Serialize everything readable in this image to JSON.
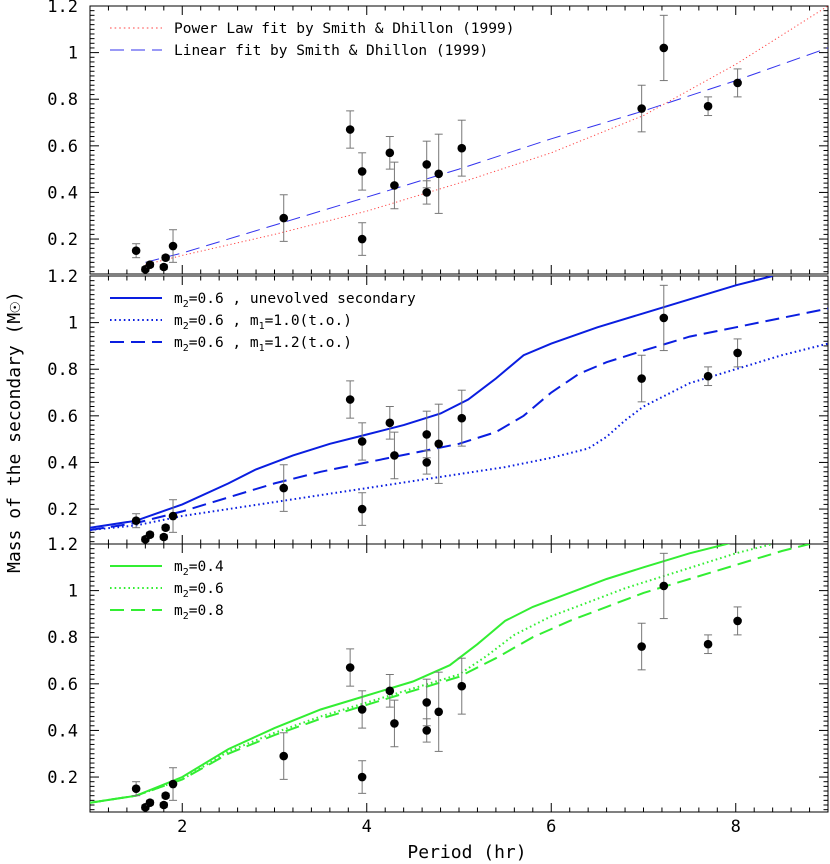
{
  "chart_data": {
    "type": "scatter",
    "shared_axes": {
      "xlabel": "Period (hr)",
      "ylabel": "Mass of the secondary (M☉)",
      "xlim": [
        1.0,
        9.0
      ],
      "ylim": [
        0.05,
        1.2
      ],
      "xticks": [
        2,
        4,
        6,
        8
      ],
      "yticks": [
        0.2,
        0.4,
        0.6,
        0.8,
        1,
        1.2
      ]
    },
    "observations": [
      {
        "x": 1.5,
        "y": 0.15,
        "err": 0.03
      },
      {
        "x": 1.6,
        "y": 0.07,
        "err": 0.01
      },
      {
        "x": 1.65,
        "y": 0.09,
        "err": 0.01
      },
      {
        "x": 1.8,
        "y": 0.08,
        "err": 0.01
      },
      {
        "x": 1.82,
        "y": 0.12,
        "err": 0.01
      },
      {
        "x": 1.9,
        "y": 0.17,
        "err": 0.07
      },
      {
        "x": 3.1,
        "y": 0.29,
        "err": 0.1
      },
      {
        "x": 3.82,
        "y": 0.67,
        "err": 0.08
      },
      {
        "x": 3.95,
        "y": 0.49,
        "err": 0.08
      },
      {
        "x": 3.95,
        "y": 0.2,
        "err": 0.07
      },
      {
        "x": 4.25,
        "y": 0.57,
        "err": 0.07
      },
      {
        "x": 4.3,
        "y": 0.43,
        "err": 0.1
      },
      {
        "x": 4.65,
        "y": 0.52,
        "err": 0.1
      },
      {
        "x": 4.65,
        "y": 0.4,
        "err": 0.05
      },
      {
        "x": 4.78,
        "y": 0.48,
        "err": 0.17
      },
      {
        "x": 5.03,
        "y": 0.59,
        "err": 0.12
      },
      {
        "x": 6.98,
        "y": 0.76,
        "err": 0.1
      },
      {
        "x": 7.22,
        "y": 1.02,
        "err": 0.14
      },
      {
        "x": 7.7,
        "y": 0.77,
        "err": 0.04
      },
      {
        "x": 8.02,
        "y": 0.87,
        "err": 0.06
      }
    ],
    "panels": [
      {
        "series": [
          {
            "name": "Power Law fit by Smith & Dhillon (1999)",
            "style": "dotted",
            "color": "#ff4444",
            "x": [
              1.6,
              2.0,
              3.0,
              4.0,
              5.0,
              6.0,
              7.0,
              8.0,
              9.0
            ],
            "y": [
              0.09,
              0.13,
              0.22,
              0.32,
              0.44,
              0.57,
              0.73,
              0.95,
              1.2
            ]
          },
          {
            "name": "Linear fit by Smith & Dhillon (1999)",
            "style": "dashed",
            "color": "#3333ee",
            "x": [
              1.6,
              2.0,
              3.0,
              4.0,
              5.0,
              6.0,
              7.0,
              8.0,
              9.0
            ],
            "y": [
              0.1,
              0.14,
              0.26,
              0.38,
              0.5,
              0.63,
              0.75,
              0.88,
              1.02
            ]
          }
        ],
        "legend": [
          {
            "parts": [
              "Power Law fit by Smith & Dhillon (1999)"
            ],
            "style": "dotted",
            "color": "#ff4444"
          },
          {
            "parts": [
              "Linear fit by Smith & Dhillon (1999)"
            ],
            "style": "dashed",
            "color": "#3333ee"
          }
        ]
      },
      {
        "series": [
          {
            "name": "m2=0.6 , unevolved secondary",
            "style": "solid",
            "color": "#0a1ee0",
            "x": [
              1.0,
              1.5,
              2.0,
              2.5,
              2.8,
              3.2,
              3.6,
              4.0,
              4.4,
              4.8,
              5.1,
              5.4,
              5.7,
              6.0,
              6.5,
              7.0,
              7.5,
              8.0,
              8.4
            ],
            "y": [
              0.12,
              0.15,
              0.22,
              0.31,
              0.37,
              0.43,
              0.48,
              0.52,
              0.56,
              0.61,
              0.67,
              0.76,
              0.86,
              0.91,
              0.98,
              1.04,
              1.1,
              1.16,
              1.2
            ]
          },
          {
            "name": "m2=0.6 , m1=1.0(t.o.)",
            "style": "dotted",
            "color": "#0a1ee0",
            "x": [
              1.0,
              1.5,
              2.0,
              3.0,
              4.0,
              5.0,
              5.5,
              6.0,
              6.4,
              6.6,
              6.8,
              7.0,
              7.5,
              8.0,
              8.5,
              9.0
            ],
            "y": [
              0.11,
              0.13,
              0.17,
              0.23,
              0.29,
              0.35,
              0.38,
              0.42,
              0.46,
              0.51,
              0.58,
              0.64,
              0.74,
              0.8,
              0.86,
              0.91
            ]
          },
          {
            "name": "m2=0.6 , m1=1.2(t.o.)",
            "style": "dashed",
            "color": "#0a1ee0",
            "x": [
              1.0,
              1.5,
              2.0,
              2.5,
              3.0,
              3.5,
              4.0,
              4.5,
              5.0,
              5.4,
              5.7,
              6.0,
              6.3,
              6.6,
              7.0,
              7.5,
              8.0,
              8.5,
              9.0
            ],
            "y": [
              0.11,
              0.14,
              0.19,
              0.25,
              0.31,
              0.36,
              0.4,
              0.44,
              0.48,
              0.53,
              0.6,
              0.7,
              0.78,
              0.83,
              0.88,
              0.94,
              0.98,
              1.02,
              1.06
            ]
          }
        ],
        "legend": [
          {
            "parts": [
              "m",
              "2",
              "=0.6 , unevolved secondary"
            ],
            "style": "solid",
            "color": "#0a1ee0"
          },
          {
            "parts": [
              "m",
              "2",
              "=0.6 , m",
              "1",
              "=1.0(t.o.)"
            ],
            "style": "dotted",
            "color": "#0a1ee0"
          },
          {
            "parts": [
              "m",
              "2",
              "=0.6 , m",
              "1",
              "=1.2(t.o.)"
            ],
            "style": "dashed",
            "color": "#0a1ee0"
          }
        ]
      },
      {
        "series": [
          {
            "name": "m2=0.4",
            "style": "solid",
            "color": "#33ee33",
            "x": [
              1.0,
              1.5,
              2.0,
              2.5,
              3.0,
              3.5,
              4.0,
              4.5,
              4.9,
              5.2,
              5.5,
              5.8,
              6.2,
              6.6,
              7.0,
              7.5,
              8.0
            ],
            "y": [
              0.09,
              0.12,
              0.2,
              0.32,
              0.41,
              0.49,
              0.55,
              0.61,
              0.68,
              0.77,
              0.87,
              0.93,
              0.99,
              1.05,
              1.1,
              1.16,
              1.21
            ]
          },
          {
            "name": "m2=0.6",
            "style": "dotted",
            "color": "#33ee33",
            "x": [
              1.0,
              1.5,
              2.0,
              2.5,
              3.0,
              3.5,
              4.0,
              4.5,
              5.0,
              5.3,
              5.6,
              6.0,
              6.4,
              6.8,
              7.2,
              7.6,
              8.0,
              8.4
            ],
            "y": [
              0.09,
              0.12,
              0.19,
              0.31,
              0.39,
              0.46,
              0.52,
              0.58,
              0.64,
              0.72,
              0.81,
              0.89,
              0.95,
              1.01,
              1.06,
              1.11,
              1.16,
              1.2
            ]
          },
          {
            "name": "m2=0.8",
            "style": "dashed",
            "color": "#33ee33",
            "x": [
              1.0,
              1.5,
              2.0,
              2.5,
              3.0,
              3.5,
              4.0,
              4.5,
              5.0,
              5.4,
              5.8,
              6.2,
              6.6,
              7.0,
              7.5,
              8.0,
              8.5,
              8.8
            ],
            "y": [
              0.09,
              0.12,
              0.19,
              0.3,
              0.38,
              0.45,
              0.51,
              0.57,
              0.63,
              0.71,
              0.8,
              0.87,
              0.93,
              0.99,
              1.05,
              1.11,
              1.17,
              1.2
            ]
          }
        ],
        "legend": [
          {
            "parts": [
              "m",
              "2",
              "=0.4"
            ],
            "style": "solid",
            "color": "#33ee33"
          },
          {
            "parts": [
              "m",
              "2",
              "=0.6"
            ],
            "style": "dotted",
            "color": "#33ee33"
          },
          {
            "parts": [
              "m",
              "2",
              "=0.8"
            ],
            "style": "dashed",
            "color": "#33ee33"
          }
        ]
      }
    ]
  }
}
